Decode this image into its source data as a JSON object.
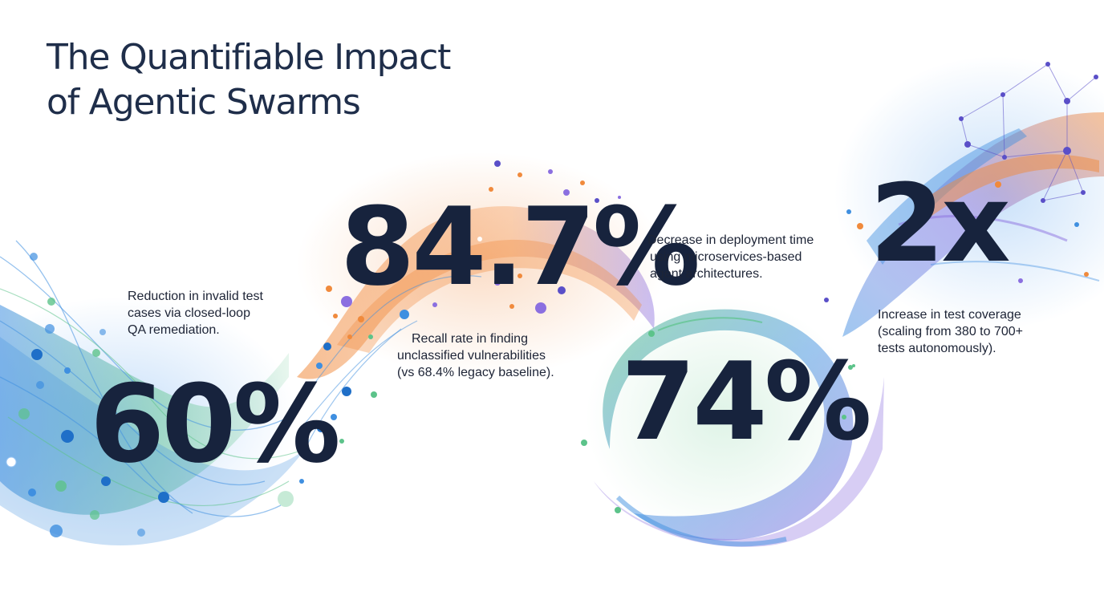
{
  "title": {
    "line1": "The Quantifiable Impact",
    "line2": "of Agentic Swarms"
  },
  "stats": [
    {
      "value": "60%",
      "desc": [
        "Reduction in invalid test",
        "cases via closed-loop",
        "QA remediation."
      ],
      "color": "#17233d"
    },
    {
      "value": "84.7%",
      "desc": [
        "Recall rate in finding",
        "unclassified vulnerabilities",
        "(vs 68.4% legacy baseline)."
      ],
      "color": "#17233d"
    },
    {
      "value": "74%",
      "desc": [
        "Decrease in deployment time",
        "using microservices-based",
        "agent architectures."
      ],
      "color": "#17233d"
    },
    {
      "value": "2x",
      "desc": [
        "Increase in test coverage",
        "(scaling from 380 to 700+",
        "tests autonomously)."
      ],
      "color": "#17233d"
    }
  ],
  "palette": {
    "blue": "#3f8fe0",
    "green": "#5cc38a",
    "orange": "#f08a3c",
    "purple": "#8b6fe0",
    "navy": "#17233d"
  },
  "decor": {
    "style": "abstract particle waves and network graph"
  }
}
